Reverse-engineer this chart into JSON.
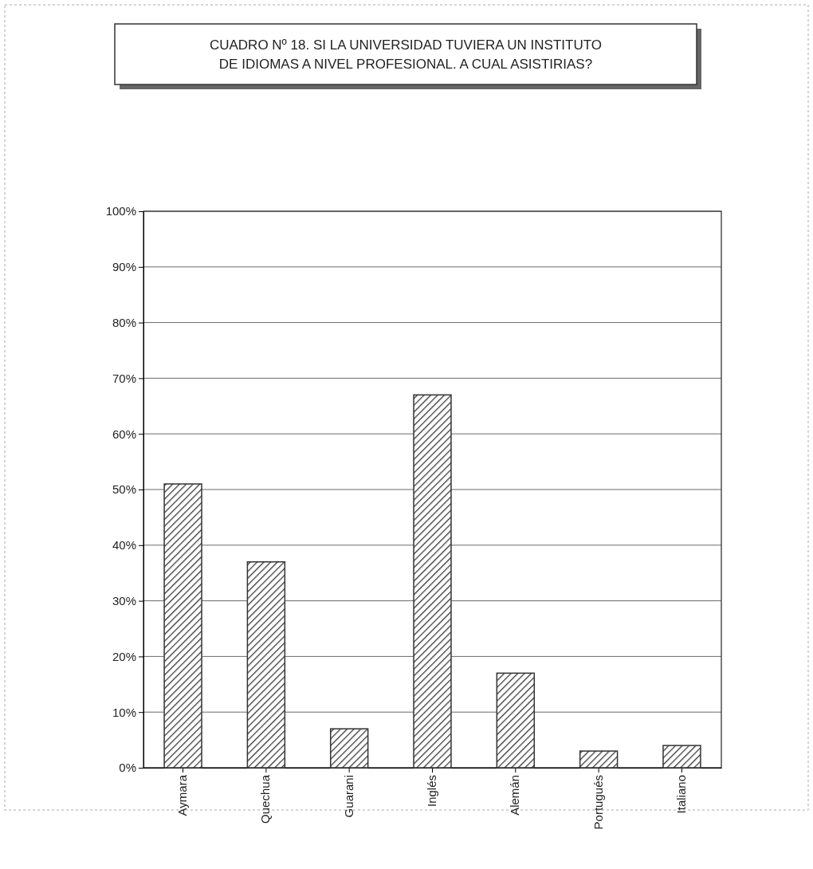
{
  "chart_data": {
    "type": "bar",
    "title": "CUADRO Nº 18. SI LA UNIVERSIDAD TUVIERA UN INSTITUTO DE IDIOMAS A NIVEL PROFESIONAL. A CUAL ASISTIRIAS?",
    "categories": [
      "Aymara",
      "Quechua",
      "Guarani",
      "Inglés",
      "Alemán",
      "Portugués",
      "Italiano"
    ],
    "values": [
      51,
      37,
      7,
      67,
      17,
      3,
      4
    ],
    "color": "#333333",
    "ylim": [
      0,
      100
    ],
    "yticks": [
      {
        "value": 0,
        "label": "0%"
      },
      {
        "value": 10,
        "label": "10%"
      },
      {
        "value": 20,
        "label": "20%"
      },
      {
        "value": 30,
        "label": "30%"
      },
      {
        "value": 40,
        "label": "40%"
      },
      {
        "value": 50,
        "label": "50%"
      },
      {
        "value": 60,
        "label": "60%"
      },
      {
        "value": 70,
        "label": "70%"
      },
      {
        "value": 80,
        "label": "80%"
      },
      {
        "value": 90,
        "label": "90%"
      },
      {
        "value": 100,
        "label": "100%"
      }
    ],
    "grid": "y"
  }
}
